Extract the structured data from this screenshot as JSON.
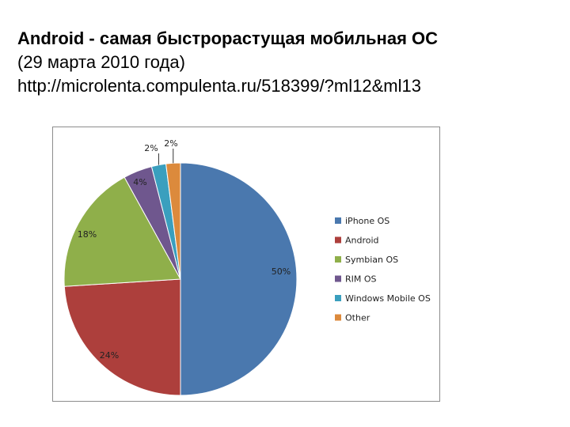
{
  "header": {
    "title_bold": "Android - самая быстрорастущая мобильная ОС",
    "date_line": "(29 марта 2010 года)",
    "source_url": "http://microlenta.compulenta.ru/518399/?ml12&ml13"
  },
  "chart_data": {
    "type": "pie",
    "title": "",
    "legend_position": "right",
    "categories": [
      "iPhone OS",
      "Android",
      "Symbian OS",
      "RIM OS",
      "Windows Mobile OS",
      "Other"
    ],
    "values": [
      50,
      24,
      18,
      4,
      2,
      2
    ],
    "labels": [
      "50%",
      "24%",
      "18%",
      "4%",
      "2%",
      "2%"
    ],
    "colors": [
      "#4a78ae",
      "#ad3f3c",
      "#8faf4a",
      "#6f578e",
      "#3a9fbe",
      "#dc8a3c"
    ]
  }
}
